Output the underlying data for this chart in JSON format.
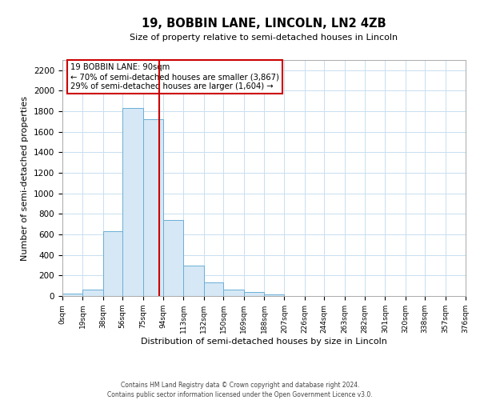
{
  "title": "19, BOBBIN LANE, LINCOLN, LN2 4ZB",
  "subtitle": "Size of property relative to semi-detached houses in Lincoln",
  "xlabel": "Distribution of semi-detached houses by size in Lincoln",
  "ylabel": "Number of semi-detached properties",
  "bin_edges": [
    0,
    19,
    38,
    56,
    75,
    94,
    113,
    132,
    150,
    169,
    188,
    207,
    226,
    244,
    263,
    282,
    301,
    320,
    338,
    357,
    376
  ],
  "bin_counts": [
    20,
    60,
    630,
    1830,
    1720,
    740,
    300,
    130,
    65,
    40,
    15,
    0,
    0,
    0,
    0,
    0,
    0,
    0,
    0,
    0
  ],
  "bar_facecolor": "#d6e8f5",
  "bar_edgecolor": "#6aaed6",
  "vline_color": "#cc0000",
  "vline_x": 90,
  "annotation_title": "19 BOBBIN LANE: 90sqm",
  "annotation_line1": "← 70% of semi-detached houses are smaller (3,867)",
  "annotation_line2": "29% of semi-detached houses are larger (1,604) →",
  "annotation_box_edgecolor": "#cc0000",
  "annotation_box_facecolor": "#ffffff",
  "ylim": [
    0,
    2300
  ],
  "yticks": [
    0,
    200,
    400,
    600,
    800,
    1000,
    1200,
    1400,
    1600,
    1800,
    2000,
    2200
  ],
  "tick_labels": [
    "0sqm",
    "19sqm",
    "38sqm",
    "56sqm",
    "75sqm",
    "94sqm",
    "113sqm",
    "132sqm",
    "150sqm",
    "169sqm",
    "188sqm",
    "207sqm",
    "226sqm",
    "244sqm",
    "263sqm",
    "282sqm",
    "301sqm",
    "320sqm",
    "338sqm",
    "357sqm",
    "376sqm"
  ],
  "footer1": "Contains HM Land Registry data © Crown copyright and database right 2024.",
  "footer2": "Contains public sector information licensed under the Open Government Licence v3.0.",
  "background_color": "#ffffff",
  "grid_color": "#c8dff0"
}
